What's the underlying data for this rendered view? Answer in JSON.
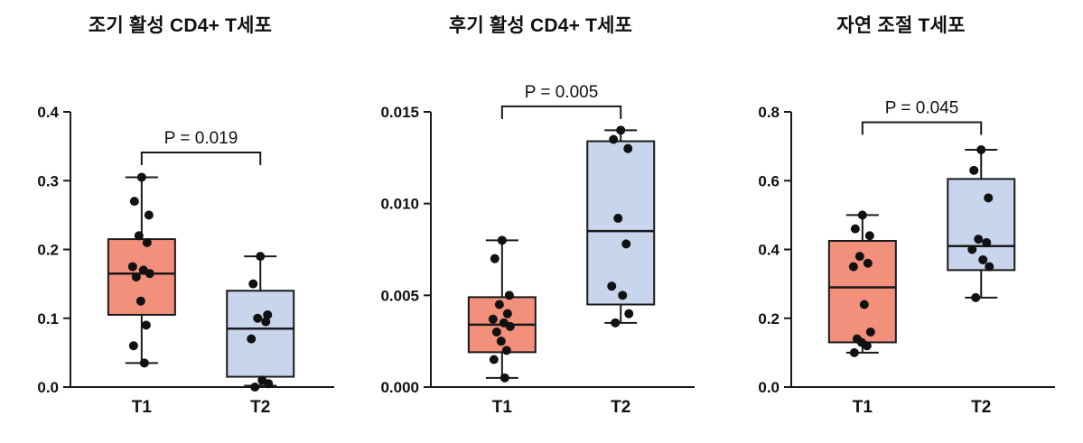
{
  "figure": {
    "background": "#ffffff",
    "axis_color": "#1a1a1a",
    "point_color": "#111111",
    "t1_fill": "#F2907B",
    "t2_fill": "#C9D5EC"
  },
  "chart_data": [
    {
      "type": "box",
      "title": "조기 활성 CD4+ T세포",
      "p_label": "P = 0.019",
      "categories": [
        "T1",
        "T2"
      ],
      "ylim": [
        0,
        0.4
      ],
      "yticks": [
        0,
        0.1,
        0.2,
        0.3,
        0.4
      ],
      "ytick_labels": [
        "0.0",
        "0.1",
        "0.2",
        "0.3",
        "0.4"
      ],
      "bracket_y": 0.341,
      "legend_position": "none",
      "grid": false,
      "series": [
        {
          "name": "T1",
          "fill": "#F2907B",
          "q1": 0.105,
          "median": 0.165,
          "q3": 0.215,
          "whisker_low": 0.035,
          "whisker_high": 0.305,
          "points": [
            0.305,
            0.27,
            0.25,
            0.22,
            0.21,
            0.175,
            0.17,
            0.165,
            0.16,
            0.125,
            0.09,
            0.06,
            0.035
          ]
        },
        {
          "name": "T2",
          "fill": "#C9D5EC",
          "q1": 0.015,
          "median": 0.085,
          "q3": 0.14,
          "whisker_low": 0.002,
          "whisker_high": 0.19,
          "points": [
            0.19,
            0.15,
            0.105,
            0.1,
            0.095,
            0.07,
            0.01,
            0.005,
            0.0
          ]
        }
      ]
    },
    {
      "type": "box",
      "title": "후기 활성 CD4+ T세포",
      "p_label": "P = 0.005",
      "categories": [
        "T1",
        "T2"
      ],
      "ylim": [
        0,
        0.015
      ],
      "yticks": [
        0,
        0.005,
        0.01,
        0.015
      ],
      "ytick_labels": [
        "0.000",
        "0.005",
        "0.010",
        "0.015"
      ],
      "bracket_y": 0.0153,
      "legend_position": "none",
      "grid": false,
      "series": [
        {
          "name": "T1",
          "fill": "#F2907B",
          "q1": 0.0019,
          "median": 0.0034,
          "q3": 0.0049,
          "whisker_low": 0.0005,
          "whisker_high": 0.008,
          "points": [
            0.008,
            0.007,
            0.005,
            0.0045,
            0.004,
            0.0037,
            0.0035,
            0.0033,
            0.003,
            0.0025,
            0.002,
            0.0015,
            0.0005
          ]
        },
        {
          "name": "T2",
          "fill": "#C9D5EC",
          "q1": 0.0045,
          "median": 0.0085,
          "q3": 0.0134,
          "whisker_low": 0.0035,
          "whisker_high": 0.014,
          "points": [
            0.014,
            0.0135,
            0.013,
            0.0092,
            0.0078,
            0.0055,
            0.005,
            0.004,
            0.0035
          ]
        }
      ]
    },
    {
      "type": "box",
      "title": "자연 조절 T세포",
      "p_label": "P = 0.045",
      "categories": [
        "T1",
        "T2"
      ],
      "ylim": [
        0,
        0.8
      ],
      "yticks": [
        0,
        0.2,
        0.4,
        0.6,
        0.8
      ],
      "ytick_labels": [
        "0.0",
        "0.2",
        "0.4",
        "0.6",
        "0.8"
      ],
      "bracket_y": 0.77,
      "legend_position": "none",
      "grid": false,
      "series": [
        {
          "name": "T1",
          "fill": "#F2907B",
          "q1": 0.13,
          "median": 0.29,
          "q3": 0.425,
          "whisker_low": 0.1,
          "whisker_high": 0.5,
          "points": [
            0.5,
            0.46,
            0.44,
            0.38,
            0.36,
            0.35,
            0.24,
            0.16,
            0.14,
            0.13,
            0.12,
            0.1
          ]
        },
        {
          "name": "T2",
          "fill": "#C9D5EC",
          "q1": 0.34,
          "median": 0.41,
          "q3": 0.605,
          "whisker_low": 0.26,
          "whisker_high": 0.69,
          "points": [
            0.69,
            0.63,
            0.55,
            0.43,
            0.42,
            0.4,
            0.37,
            0.35,
            0.26
          ]
        }
      ]
    }
  ]
}
